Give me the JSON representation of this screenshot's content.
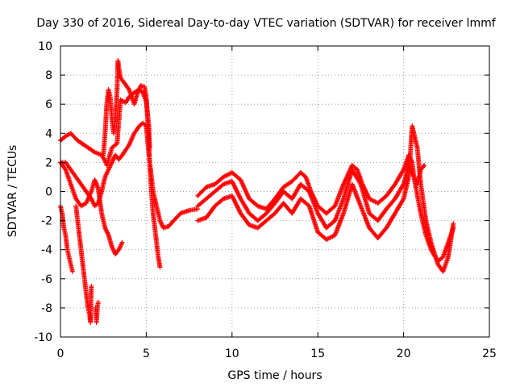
{
  "chart_data": {
    "type": "scatter",
    "title": "Day 330 of 2016, Sidereal Day-to-day VTEC variation (SDTVAR) for receiver lmmf",
    "xlabel": "GPS time / hours",
    "ylabel": "SDTVAR / TECUs",
    "xlim": [
      0,
      25
    ],
    "ylim": [
      -10,
      10
    ],
    "xticks": [
      0,
      5,
      10,
      15,
      20,
      25
    ],
    "xtick_labels": [
      "0",
      "5",
      "10",
      "15",
      "20",
      "25"
    ],
    "yticks": [
      -10,
      -8,
      -6,
      -4,
      -2,
      0,
      2,
      4,
      6,
      8,
      10
    ],
    "ytick_labels": [
      "-10",
      "-8",
      "-6",
      "-4",
      "-2",
      "0",
      "2",
      "4",
      "6",
      "8",
      "10"
    ],
    "grid": true,
    "marker": "+",
    "color": "#ff0000",
    "series": [
      {
        "name": "track-1",
        "x": [
          0.0,
          0.3,
          0.6,
          1.0,
          1.5,
          2.0,
          2.4,
          2.6,
          2.7,
          2.8,
          3.0,
          3.3,
          3.5,
          3.8,
          4.0,
          4.3,
          4.6,
          4.8,
          5.0,
          5.15,
          5.2
        ],
        "y": [
          3.5,
          3.8,
          4.0,
          3.5,
          3.1,
          2.7,
          2.5,
          2.1,
          1.8,
          2.2,
          3.0,
          3.3,
          6.3,
          6.1,
          6.5,
          6.8,
          7.0,
          6.8,
          6.2,
          4.5,
          3.0
        ]
      },
      {
        "name": "track-2",
        "x": [
          2.5,
          2.6,
          2.7,
          2.8,
          2.9,
          3.0,
          3.1,
          3.2,
          3.3,
          3.35,
          3.4,
          3.5,
          3.7,
          4.0,
          4.3,
          4.5,
          4.7,
          4.9,
          5.0,
          5.1,
          5.2,
          5.3,
          5.4,
          5.5,
          5.6,
          5.7,
          5.8
        ],
        "y": [
          2.5,
          4.0,
          6.0,
          7.0,
          6.5,
          5.0,
          4.0,
          5.0,
          7.0,
          9.0,
          8.5,
          7.8,
          7.5,
          7.0,
          6.0,
          6.8,
          7.3,
          7.2,
          6.5,
          4.5,
          2.0,
          0.0,
          -1.5,
          -2.5,
          -3.5,
          -4.5,
          -5.2
        ]
      },
      {
        "name": "track-3",
        "x": [
          0.0,
          0.3,
          0.6,
          0.9,
          1.2,
          1.5,
          1.8,
          2.0,
          2.2,
          2.4,
          2.6,
          2.8,
          3.0,
          3.2,
          3.4,
          3.6,
          4.0,
          4.3,
          4.6,
          4.8,
          5.0,
          5.2,
          5.4,
          5.6,
          5.8,
          6.0,
          6.3,
          6.6,
          7.0,
          7.5,
          8.0
        ],
        "y": [
          2.0,
          2.0,
          1.5,
          1.0,
          0.5,
          0.0,
          -0.5,
          -1.0,
          -0.8,
          0.0,
          1.0,
          1.5,
          2.0,
          2.5,
          2.2,
          2.5,
          3.2,
          4.0,
          4.5,
          4.7,
          4.5,
          2.0,
          0.0,
          -1.0,
          -2.0,
          -2.5,
          -2.4,
          -2.0,
          -1.5,
          -1.3,
          -1.2
        ]
      },
      {
        "name": "track-4",
        "x": [
          0.0,
          0.3,
          0.6,
          0.9,
          1.2,
          1.5,
          1.8,
          2.0,
          2.2,
          2.4,
          2.6,
          2.8,
          3.0,
          3.2,
          3.4,
          3.6
        ],
        "y": [
          2.0,
          1.5,
          0.5,
          -0.5,
          -1.0,
          -0.8,
          0.0,
          0.8,
          0.2,
          -1.5,
          -2.5,
          -3.0,
          -3.8,
          -4.3,
          -4.0,
          -3.5
        ]
      },
      {
        "name": "track-5",
        "x": [
          0.0,
          0.1,
          0.2,
          0.3,
          0.4,
          0.5,
          0.6,
          0.7
        ],
        "y": [
          -1.0,
          -1.5,
          -2.5,
          -3.0,
          -4.0,
          -4.5,
          -5.0,
          -5.5
        ]
      },
      {
        "name": "track-6",
        "x": [
          0.9,
          1.0,
          1.1,
          1.2,
          1.3,
          1.4,
          1.5,
          1.6,
          1.7,
          1.75,
          1.8
        ],
        "y": [
          -1.0,
          -2.0,
          -3.0,
          -4.0,
          -5.0,
          -6.0,
          -7.0,
          -8.0,
          -8.5,
          -9.0,
          -6.5
        ]
      },
      {
        "name": "track-7",
        "x": [
          2.05,
          2.1,
          2.15,
          2.2
        ],
        "y": [
          -8.0,
          -9.0,
          -8.0,
          -7.6
        ]
      },
      {
        "name": "track-8",
        "x": [
          8.0,
          8.5,
          9.0,
          9.5,
          10.0,
          10.5,
          11.0,
          11.5,
          12.0,
          12.5,
          13.0,
          13.5,
          14.0,
          14.3,
          14.6,
          15.0,
          15.5,
          16.0,
          16.5,
          17.0,
          17.3,
          17.6,
          18.0,
          18.5,
          19.0,
          19.5,
          20.0,
          20.3,
          20.5,
          20.6,
          20.8,
          21.0,
          21.2
        ],
        "y": [
          -0.3,
          0.3,
          0.5,
          1.0,
          1.3,
          0.8,
          -0.5,
          -1.0,
          -1.2,
          -0.5,
          0.3,
          0.7,
          1.3,
          1.0,
          0.0,
          -1.0,
          -1.5,
          -1.0,
          0.5,
          1.8,
          1.5,
          0.5,
          -0.5,
          -0.8,
          -0.3,
          0.5,
          1.5,
          2.5,
          2.0,
          1.0,
          0.5,
          1.5,
          1.8
        ]
      },
      {
        "name": "track-9",
        "x": [
          8.0,
          8.5,
          9.0,
          9.5,
          10.0,
          10.5,
          11.0,
          11.5,
          12.0,
          12.5,
          13.0,
          13.5,
          14.0,
          14.5,
          15.0,
          15.5,
          16.0,
          16.5,
          17.0,
          17.5,
          18.0,
          18.5,
          19.0,
          19.5,
          20.0,
          20.3,
          20.6,
          21.0,
          21.3,
          21.6,
          22.0,
          22.3,
          22.6,
          22.9
        ],
        "y": [
          -1.0,
          -0.5,
          0.0,
          0.5,
          0.7,
          -0.5,
          -1.5,
          -2.0,
          -1.5,
          -0.8,
          0.0,
          -0.5,
          0.5,
          0.0,
          -1.5,
          -2.5,
          -2.0,
          -0.5,
          1.5,
          0.5,
          -1.5,
          -2.0,
          -1.2,
          -0.5,
          0.5,
          1.8,
          1.0,
          -1.5,
          -3.0,
          -4.0,
          -4.8,
          -4.5,
          -3.5,
          -2.5
        ]
      },
      {
        "name": "track-10",
        "x": [
          8.0,
          8.5,
          9.0,
          9.5,
          10.0,
          10.5,
          11.0,
          11.5,
          12.0,
          12.5,
          13.0,
          13.5,
          14.0,
          14.5,
          15.0,
          15.5,
          16.0,
          16.5,
          17.0,
          17.5,
          18.0,
          18.5,
          19.0,
          19.5,
          20.0,
          20.3,
          20.5,
          20.8,
          21.0,
          21.3,
          21.6,
          22.0,
          22.3,
          22.6,
          22.9
        ],
        "y": [
          -2.0,
          -1.8,
          -1.0,
          -0.5,
          -0.3,
          -1.5,
          -2.3,
          -2.5,
          -2.0,
          -1.5,
          -0.8,
          -1.5,
          -0.5,
          -1.0,
          -2.8,
          -3.3,
          -3.0,
          -1.5,
          0.5,
          -1.0,
          -2.5,
          -3.2,
          -2.5,
          -1.5,
          -0.5,
          1.0,
          4.5,
          3.0,
          0.5,
          -2.0,
          -3.5,
          -5.0,
          -5.5,
          -4.5,
          -2.2
        ]
      }
    ]
  }
}
